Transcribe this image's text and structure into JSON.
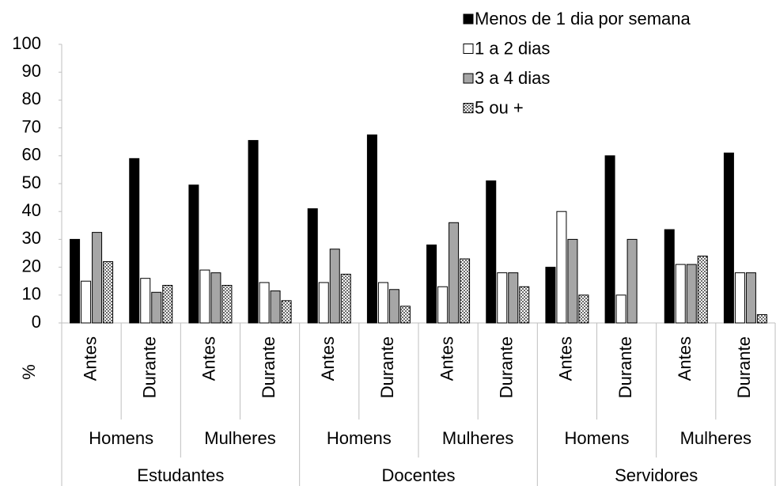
{
  "chart_data": {
    "type": "bar",
    "y_label": "%",
    "categories": [
      "Antes",
      "Durante",
      "Antes",
      "Durante",
      "Antes",
      "Durante",
      "Antes",
      "Durante",
      "Antes",
      "Durante",
      "Antes",
      "Durante"
    ],
    "subgroups": [
      "Homens",
      "Mulheres",
      "Homens",
      "Mulheres",
      "Homens",
      "Mulheres"
    ],
    "groups": [
      "Estudantes",
      "Docentes",
      "Servidores"
    ],
    "series": [
      {
        "name": "Menos de 1 dia por semana",
        "color": "#000000",
        "values": [
          30,
          59,
          49.5,
          65.5,
          41,
          67.5,
          28,
          51,
          20,
          60,
          33.5,
          61
        ]
      },
      {
        "name": "1 a 2 dias",
        "color": "#ffffff",
        "values": [
          15,
          16,
          19,
          14.5,
          14.5,
          14.5,
          13,
          18,
          40,
          10,
          21,
          18
        ]
      },
      {
        "name": "3 a 4 dias",
        "color": "#a6a6a6",
        "values": [
          32.5,
          11,
          18,
          11.5,
          26.5,
          12,
          36,
          18,
          30,
          30,
          21,
          18
        ]
      },
      {
        "name": "5 ou +",
        "color": "#ffffff",
        "pattern": "dots",
        "values": [
          22,
          13.5,
          13.5,
          8,
          17.5,
          6,
          23,
          13,
          10,
          0,
          24,
          3
        ]
      }
    ],
    "ylim": [
      0,
      100
    ],
    "yticks": [
      0,
      10,
      20,
      30,
      40,
      50,
      60,
      70,
      80,
      90,
      100
    ],
    "legend": "top-right"
  }
}
